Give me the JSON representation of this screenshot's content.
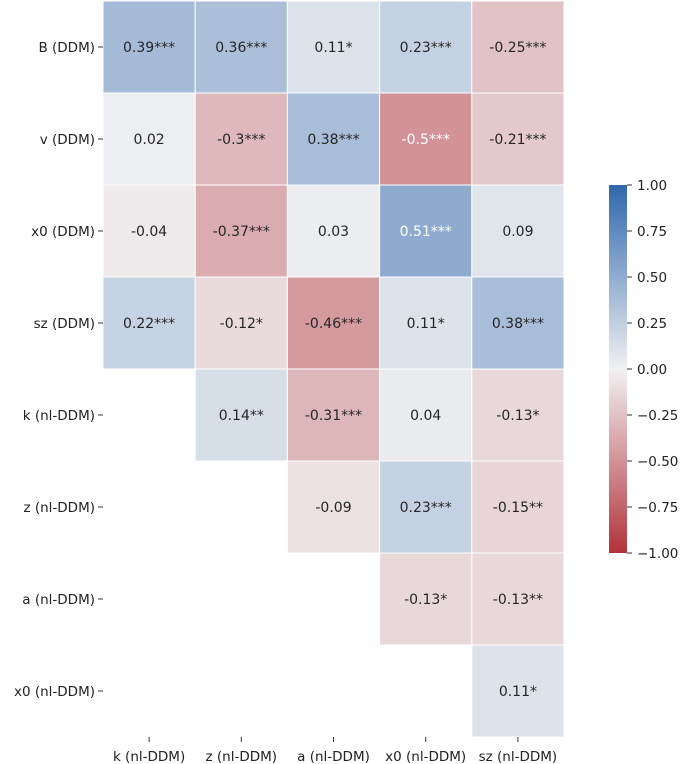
{
  "chart_data": {
    "type": "heatmap",
    "title": "",
    "row_labels": [
      "B (DDM)",
      "v (DDM)",
      "x0 (DDM)",
      "sz (DDM)",
      "k (nl-DDM)",
      "z (nl-DDM)",
      "a (nl-DDM)",
      "x0 (nl-DDM)"
    ],
    "col_labels": [
      "k (nl-DDM)",
      "z (nl-DDM)",
      "a (nl-DDM)",
      "x0 (nl-DDM)",
      "sz (nl-DDM)"
    ],
    "cells": [
      [
        {
          "v": 0.39,
          "t": "0.39***"
        },
        {
          "v": 0.36,
          "t": "0.36***"
        },
        {
          "v": 0.11,
          "t": "0.11*"
        },
        {
          "v": 0.23,
          "t": "0.23***"
        },
        {
          "v": -0.25,
          "t": "-0.25***"
        }
      ],
      [
        {
          "v": 0.02,
          "t": "0.02"
        },
        {
          "v": -0.3,
          "t": "-0.3***"
        },
        {
          "v": 0.38,
          "t": "0.38***"
        },
        {
          "v": -0.5,
          "t": "-0.5***"
        },
        {
          "v": -0.21,
          "t": "-0.21***"
        }
      ],
      [
        {
          "v": -0.04,
          "t": "-0.04"
        },
        {
          "v": -0.37,
          "t": "-0.37***"
        },
        {
          "v": 0.03,
          "t": "0.03"
        },
        {
          "v": 0.51,
          "t": "0.51***"
        },
        {
          "v": 0.09,
          "t": "0.09"
        }
      ],
      [
        {
          "v": 0.22,
          "t": "0.22***"
        },
        {
          "v": -0.12,
          "t": "-0.12*"
        },
        {
          "v": -0.46,
          "t": "-0.46***"
        },
        {
          "v": 0.11,
          "t": "0.11*"
        },
        {
          "v": 0.38,
          "t": "0.38***"
        }
      ],
      [
        null,
        {
          "v": 0.14,
          "t": "0.14**"
        },
        {
          "v": -0.31,
          "t": "-0.31***"
        },
        {
          "v": 0.04,
          "t": "0.04"
        },
        {
          "v": -0.13,
          "t": "-0.13*"
        }
      ],
      [
        null,
        null,
        {
          "v": -0.09,
          "t": "-0.09"
        },
        {
          "v": 0.23,
          "t": "0.23***"
        },
        {
          "v": -0.15,
          "t": "-0.15**"
        }
      ],
      [
        null,
        null,
        null,
        {
          "v": -0.13,
          "t": "-0.13*"
        },
        {
          "v": -0.13,
          "t": "-0.13**"
        }
      ],
      [
        null,
        null,
        null,
        null,
        {
          "v": 0.11,
          "t": "0.11*"
        }
      ]
    ],
    "colorbar": {
      "vmin": -1.0,
      "vmax": 1.0,
      "ticks": [
        1.0,
        0.75,
        0.5,
        0.25,
        0.0,
        -0.25,
        -0.5,
        -0.75,
        -1.0
      ],
      "tick_labels": [
        "1.00",
        "0.75",
        "0.50",
        "0.25",
        "0.00",
        "−0.25",
        "−0.50",
        "−0.75",
        "−1.00"
      ]
    },
    "colors": {
      "negative": "#b2333c",
      "neutral": "#f1f1f2",
      "positive": "#2f67ad"
    }
  }
}
